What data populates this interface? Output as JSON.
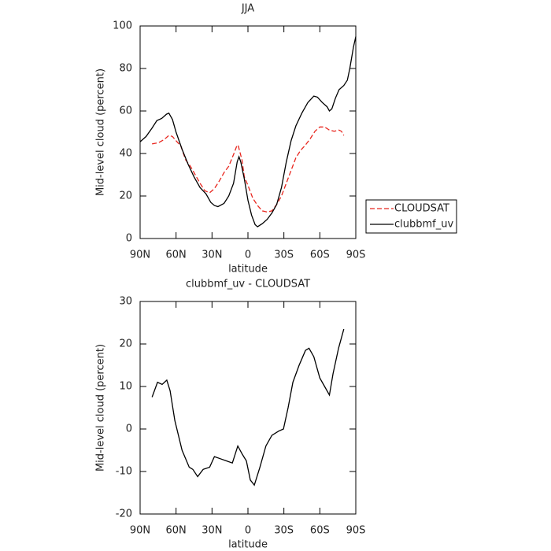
{
  "chart_data": [
    {
      "type": "line",
      "title": "JJA",
      "xlabel": "latitude",
      "ylabel": "Mid-level cloud (percent)",
      "xlim": [
        90,
        -90
      ],
      "xticks": [
        {
          "value": 90,
          "label": "90N"
        },
        {
          "value": 60,
          "label": "60N"
        },
        {
          "value": 30,
          "label": "30N"
        },
        0,
        {
          "value": -30,
          "label": "30S"
        },
        {
          "value": -60,
          "label": "60S"
        },
        {
          "value": -90,
          "label": "90S"
        }
      ],
      "ylim": [
        0,
        100
      ],
      "yticks": [
        0,
        20,
        40,
        60,
        80,
        100
      ],
      "legend": "right",
      "series": [
        {
          "name": "CLOUDSAT",
          "color": "#e8261e",
          "dash": "dashed",
          "x": [
            80,
            75,
            70,
            66,
            63,
            60,
            56,
            52,
            48,
            44,
            40,
            36,
            32,
            28,
            24,
            20,
            16,
            12,
            9,
            8,
            5,
            3,
            0,
            -4,
            -8,
            -12,
            -16,
            -20,
            -24,
            -28,
            -32,
            -36,
            -40,
            -44,
            -48,
            -52,
            -56,
            -60,
            -64,
            -68,
            -72,
            -76,
            -78,
            -80
          ],
          "values": [
            44.5,
            45,
            46.5,
            48.5,
            48,
            46,
            43.5,
            37,
            34,
            30,
            26,
            22.5,
            21.5,
            23.5,
            27,
            31,
            34,
            39.5,
            44,
            43.5,
            37,
            29,
            25,
            19,
            15.5,
            13,
            12.5,
            13,
            16,
            20,
            26,
            32,
            38,
            41.5,
            44,
            47,
            50.5,
            52.5,
            52.5,
            51,
            50.5,
            51,
            50.5,
            48.5
          ]
        },
        {
          "name": "clubbmf_uv",
          "color": "#000000",
          "dash": "solid",
          "x": [
            90,
            85,
            80,
            76,
            72,
            68,
            66,
            63,
            60,
            55,
            50,
            45,
            40,
            35,
            31,
            28,
            25,
            20,
            16,
            12,
            9,
            7.5,
            6,
            3,
            0,
            -3,
            -6,
            -8,
            -12,
            -16,
            -20,
            -24,
            -28,
            -32,
            -36,
            -40,
            -45,
            -50,
            -55,
            -58,
            -62,
            -66,
            -68,
            -70,
            -73,
            -76,
            -80,
            -83,
            -85,
            -88,
            -90
          ],
          "values": [
            45.5,
            48,
            52,
            55.5,
            56.5,
            58.5,
            59,
            56,
            50,
            42,
            35,
            29,
            24,
            21,
            17,
            15.5,
            15,
            16.5,
            20,
            26,
            36,
            38.5,
            36,
            28,
            18,
            11,
            6.5,
            5.5,
            7,
            9,
            12,
            16,
            24,
            36,
            46,
            53,
            59,
            64,
            67,
            66.5,
            64,
            62,
            60,
            61,
            66,
            70,
            72,
            74.5,
            80,
            90,
            95
          ]
        }
      ]
    },
    {
      "type": "line",
      "title": "clubbmf_uv - CLOUDSAT",
      "xlabel": "latitude",
      "ylabel": "Mid-level cloud (percent)",
      "xlim": [
        90,
        -90
      ],
      "xticks": [
        {
          "value": 90,
          "label": "90N"
        },
        {
          "value": 60,
          "label": "60N"
        },
        {
          "value": 30,
          "label": "30N"
        },
        0,
        {
          "value": -30,
          "label": "30S"
        },
        {
          "value": -60,
          "label": "60S"
        },
        {
          "value": -90,
          "label": "90S"
        }
      ],
      "ylim": [
        -20,
        30
      ],
      "yticks": [
        -20,
        -10,
        0,
        10,
        20,
        30
      ],
      "series": [
        {
          "color": "#000000",
          "dash": "solid",
          "x": [
            80,
            75.5,
            71.6,
            67.7,
            65,
            61,
            55,
            49,
            46,
            42,
            37.4,
            32,
            28,
            23,
            18,
            13,
            8.5,
            4.6,
            1.3,
            -2,
            -5.3,
            -10,
            -15,
            -20,
            -25.6,
            -29.6,
            -33.5,
            -37.5,
            -42.7,
            -48,
            -51,
            -55,
            -60,
            -64,
            -68,
            -71,
            -75.6,
            -80
          ],
          "values": [
            7.5,
            11,
            10.5,
            11.5,
            9,
            2,
            -5,
            -9,
            -9.5,
            -11.2,
            -9.5,
            -9,
            -6.5,
            -7,
            -7.5,
            -8,
            -4,
            -6,
            -7.5,
            -12,
            -13.2,
            -9,
            -4,
            -1.5,
            -0.5,
            0,
            5,
            11,
            15,
            18.5,
            19,
            17,
            12,
            10,
            8,
            13,
            19,
            23.5
          ]
        }
      ]
    }
  ]
}
